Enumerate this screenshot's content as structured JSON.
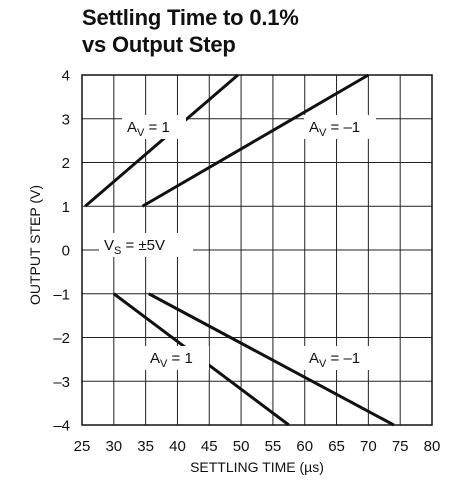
{
  "chart_data": {
    "type": "line",
    "title_line1": "Settling Time to 0.1%",
    "title_line2": "vs Output Step",
    "xlabel": "SETTLING TIME (µs)",
    "ylabel": "OUTPUT STEP (V)",
    "xlim": [
      25,
      80
    ],
    "ylim": [
      -4,
      4
    ],
    "xticks": [
      25,
      30,
      35,
      40,
      45,
      50,
      55,
      60,
      65,
      70,
      75,
      80
    ],
    "yticks": [
      4,
      3,
      2,
      1,
      0,
      -1,
      -2,
      -3,
      -4
    ],
    "ytick_labels": [
      "4",
      "3",
      "2",
      "1",
      "0",
      "–1",
      "–2",
      "–3",
      "–4"
    ],
    "grid": true,
    "series": [
      {
        "name": "AV = 1 (positive step)",
        "x": [
          25.5,
          49.5
        ],
        "y": [
          1,
          4
        ]
      },
      {
        "name": "AV = –1 (positive step)",
        "x": [
          34.5,
          70
        ],
        "y": [
          1,
          4
        ]
      },
      {
        "name": "AV = 1 (negative step)",
        "x": [
          30,
          57.5
        ],
        "y": [
          -1,
          -4
        ]
      },
      {
        "name": "AV = –1 (negative step)",
        "x": [
          35.5,
          74
        ],
        "y": [
          -1,
          -4
        ]
      }
    ],
    "annotations": [
      {
        "main": "A",
        "sub": "V",
        "rest": " = 1"
      },
      {
        "main": "A",
        "sub": "V",
        "rest": " = –1"
      },
      {
        "main": "V",
        "sub": "S",
        "rest": " = ±5V"
      },
      {
        "main": "A",
        "sub": "V",
        "rest": " = 1"
      },
      {
        "main": "A",
        "sub": "V",
        "rest": " = –1"
      }
    ]
  }
}
